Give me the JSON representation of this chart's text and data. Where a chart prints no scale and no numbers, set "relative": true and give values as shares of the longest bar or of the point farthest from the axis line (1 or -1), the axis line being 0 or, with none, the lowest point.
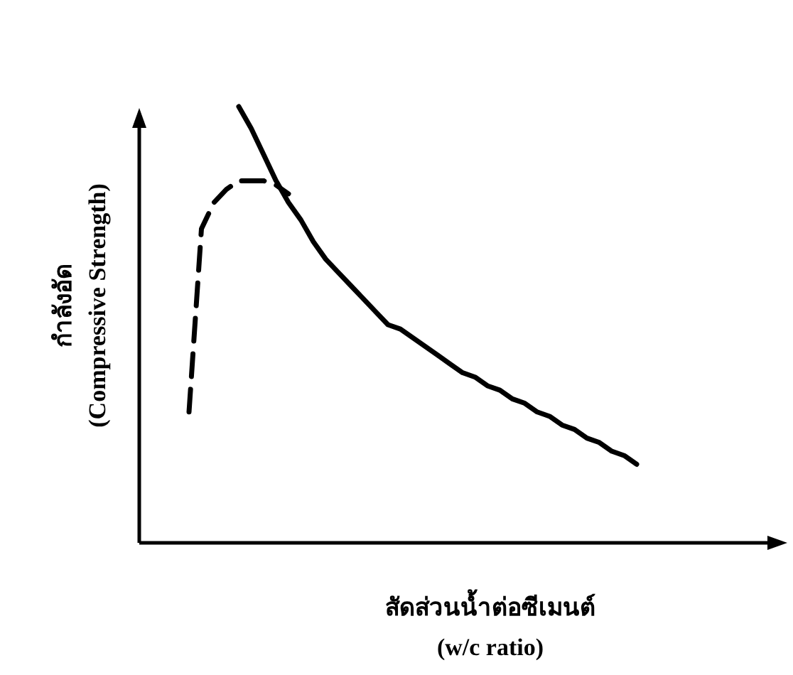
{
  "chart_data": {
    "type": "line",
    "relative": true,
    "xlabel": "สัดส่วนน้ำต่อซีเมนต์\n(w/c ratio)",
    "ylabel": "กำลังอัด\n(Compressive Strength)",
    "categories": [
      null,
      null,
      null,
      null,
      null,
      null,
      null,
      null,
      null,
      null,
      null,
      null,
      null,
      null,
      null,
      null,
      null,
      null,
      null,
      null,
      null,
      null,
      null,
      null,
      null,
      null,
      null,
      null,
      null,
      null,
      null,
      null,
      null,
      null,
      null,
      null,
      null,
      null,
      null,
      null,
      null,
      null,
      null,
      null,
      null,
      null,
      null,
      null,
      null,
      null
    ],
    "series": [
      {
        "color": "#000000",
        "line_style": "solid",
        "values": [
          null,
          null,
          null,
          null,
          null,
          null,
          null,
          1,
          0.95,
          0.89,
          0.83,
          0.78,
          0.74,
          0.69,
          0.65,
          0.62,
          0.59,
          0.56,
          0.53,
          0.5,
          0.49,
          0.47,
          0.45,
          0.43,
          0.41,
          0.39,
          0.38,
          0.36,
          0.35,
          0.33,
          0.32,
          0.3,
          0.29,
          0.27,
          0.26,
          0.24,
          0.23,
          0.21,
          0.2,
          0.18,
          null,
          null,
          null,
          null,
          null,
          null,
          null,
          null,
          null,
          null
        ]
      },
      {
        "color": "#000000",
        "line_style": "dashed",
        "values": [
          null,
          null,
          null,
          0.3,
          0.72,
          0.78,
          0.81,
          0.83,
          0.83,
          0.83,
          0.82,
          0.8,
          null,
          null,
          null,
          null,
          null,
          null,
          null,
          null,
          null,
          null,
          null,
          null,
          null,
          null,
          null,
          null,
          null,
          null,
          null,
          null,
          null,
          null,
          null,
          null,
          null,
          null,
          null,
          null,
          null,
          null,
          null,
          null,
          null,
          null,
          null,
          null,
          null,
          null
        ]
      }
    ]
  }
}
